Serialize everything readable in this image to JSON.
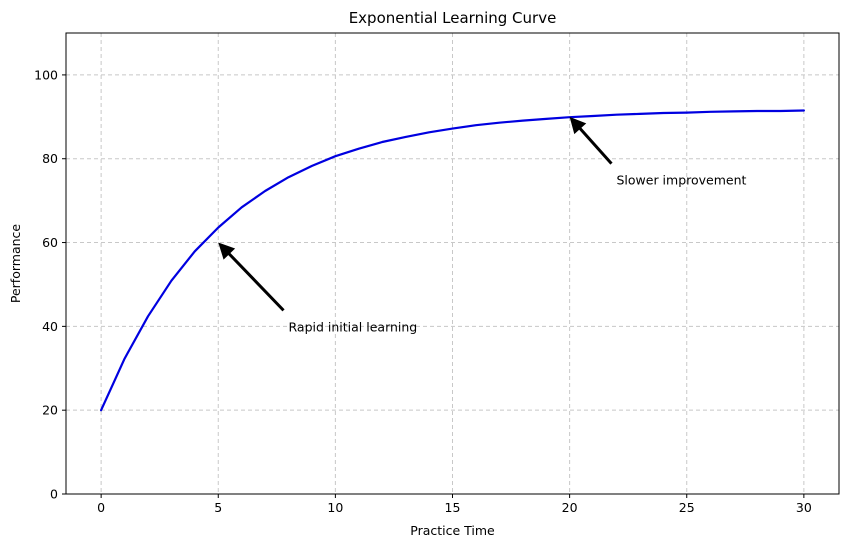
{
  "chart_data": {
    "type": "line",
    "title": "Exponential Learning Curve",
    "xlabel": "Practice Time",
    "ylabel": "Performance",
    "xlim": [
      -1.5,
      31.5
    ],
    "ylim": [
      0,
      110
    ],
    "xticks": [
      0,
      5,
      10,
      15,
      20,
      25,
      30
    ],
    "yticks": [
      0,
      20,
      40,
      60,
      80,
      100
    ],
    "grid": true,
    "series": [
      {
        "color": "#0000e0",
        "x": [
          0,
          1,
          2,
          3,
          4,
          5,
          6,
          7,
          8,
          9,
          10,
          11,
          12,
          13,
          14,
          15,
          16,
          17,
          18,
          19,
          20,
          21,
          22,
          23,
          24,
          25,
          26,
          27,
          28,
          29,
          30
        ],
        "y": [
          20,
          32.3,
          42.4,
          50.9,
          57.9,
          63.6,
          68.4,
          72.3,
          75.6,
          78.3,
          80.6,
          82.4,
          84.0,
          85.2,
          86.3,
          87.2,
          88.0,
          88.6,
          89.1,
          89.5,
          89.9,
          90.2,
          90.5,
          90.7,
          90.9,
          91.0,
          91.2,
          91.3,
          91.4,
          91.4,
          91.5
        ]
      }
    ],
    "annotations": [
      {
        "text": "Rapid initial learning",
        "text_x": 8,
        "text_y": 40,
        "arrow_x": 5,
        "arrow_y": 60
      },
      {
        "text": "Slower improvement",
        "text_x": 22,
        "text_y": 75,
        "arrow_x": 20,
        "arrow_y": 90
      }
    ]
  }
}
